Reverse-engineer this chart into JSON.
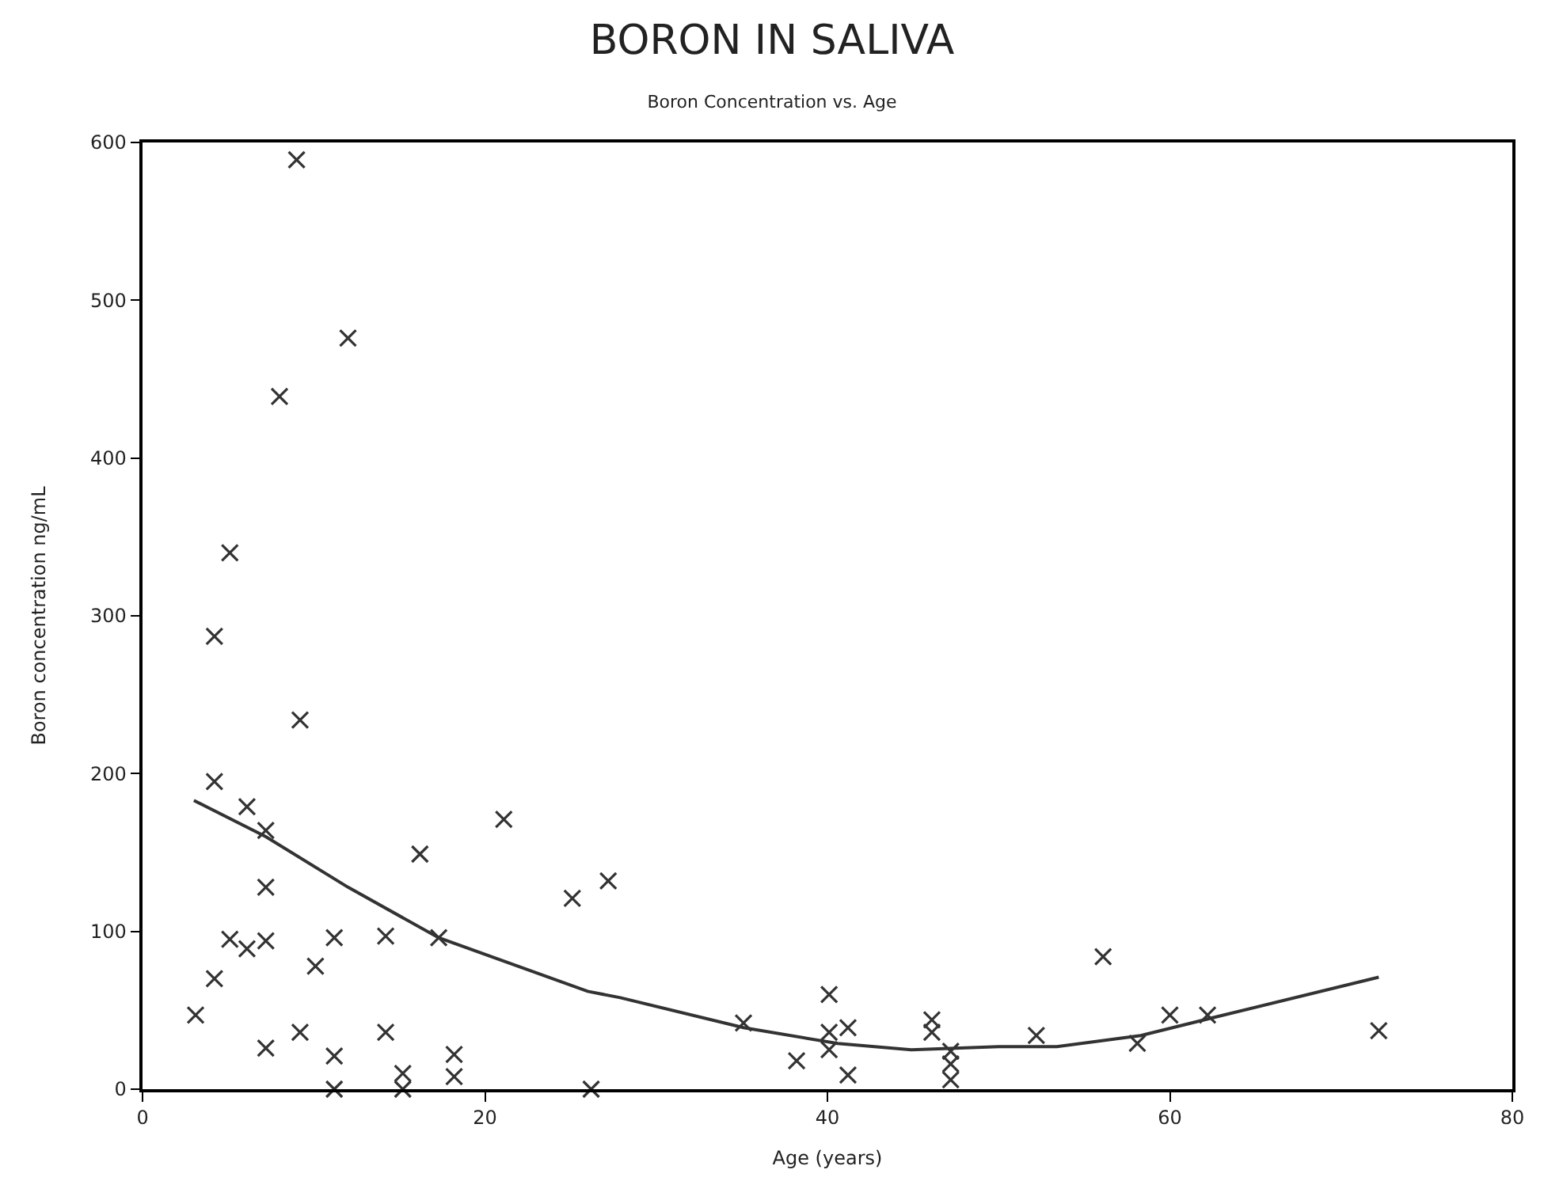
{
  "chart_data": {
    "type": "scatter",
    "title": "BORON IN SALIVA",
    "subtitle": "Boron Concentration vs. Age",
    "xlabel": "Age (years)",
    "ylabel": "Boron concentration ng/mL",
    "xlim": [
      0,
      80
    ],
    "xticks": [
      0,
      20,
      40,
      60,
      80
    ],
    "ylim": [
      0,
      600
    ],
    "yticks": [
      0,
      100,
      200,
      300,
      400,
      500,
      600
    ],
    "series": [
      {
        "marker": "cross",
        "color": "#333333",
        "x": [
          9.0,
          12.0,
          8.0,
          5.1,
          4.2,
          9.2,
          4.2,
          6.1,
          7.2,
          7.2,
          21.1,
          16.2,
          27.2,
          25.1,
          5.1,
          6.1,
          7.2,
          11.2,
          14.2,
          17.3,
          10.1,
          4.2,
          3.1,
          7.2,
          9.2,
          14.2,
          11.2,
          18.2,
          18.2,
          15.2,
          15.2,
          11.2,
          26.2,
          56.1,
          40.1,
          35.1,
          40.1,
          41.2,
          46.1,
          46.1,
          40.1,
          38.2,
          41.2,
          47.2,
          47.2,
          47.2,
          52.2,
          58.1,
          60.0,
          62.2,
          72.2
        ],
        "values": [
          589,
          476,
          439,
          340,
          287,
          234,
          195,
          179,
          164,
          128,
          171,
          149,
          132,
          121,
          95,
          89,
          94,
          96,
          97,
          96,
          78,
          70,
          47,
          26,
          36,
          36,
          21,
          22,
          8,
          10,
          0,
          0,
          0,
          84,
          60,
          42,
          36,
          39,
          44,
          36,
          25,
          18,
          9,
          24,
          16,
          6,
          34,
          29,
          47,
          47,
          37
        ]
      },
      {
        "type": "line",
        "marker": "none",
        "line_style": "solid",
        "color": "#333333",
        "x": [
          3.0,
          7.2,
          12.0,
          17.3,
          26.0,
          27.9,
          35.1,
          40.6,
          44.9,
          50.0,
          53.4,
          58.3,
          62.4,
          72.2
        ],
        "values": [
          183,
          160,
          128,
          96,
          62,
          58,
          39,
          29,
          25,
          27,
          27,
          34,
          45,
          71
        ]
      }
    ]
  }
}
